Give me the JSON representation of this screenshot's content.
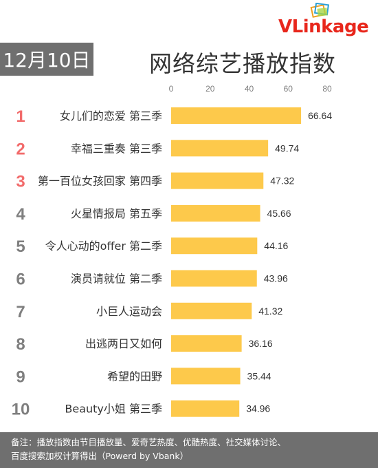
{
  "header": {
    "logo_text_v": "VLink",
    "logo_text_rest": "age",
    "date": "12月10日",
    "title": "网络综艺播放指数"
  },
  "colors": {
    "bar": "#fdc94b",
    "rank_top": "#f26b6b",
    "rank_other": "#7f7f7f",
    "badge_bg": "#6f6f6f",
    "logo_red": "#e8261b"
  },
  "chart_data": {
    "type": "bar",
    "orientation": "horizontal",
    "title": "网络综艺播放指数",
    "categories": [
      "女儿们的恋爱 第三季",
      "幸福三重奏 第三季",
      "第一百位女孩回家 第四季",
      "火星情报局 第五季",
      "令人心动的offer 第二季",
      "演员请就位 第二季",
      "小巨人运动会",
      "出逃两日又如何",
      "希望的田野",
      "Beauty小姐 第三季"
    ],
    "ranks": [
      "1",
      "2",
      "3",
      "4",
      "5",
      "6",
      "7",
      "8",
      "9",
      "10"
    ],
    "values": [
      66.64,
      49.74,
      47.32,
      45.66,
      44.16,
      43.96,
      41.32,
      36.16,
      35.44,
      34.96
    ],
    "value_labels": [
      "66.64",
      "49.74",
      "47.32",
      "45.66",
      "44.16",
      "43.96",
      "41.32",
      "36.16",
      "35.44",
      "34.96"
    ],
    "x_ticks": [
      "0",
      "20",
      "40",
      "60",
      "80"
    ],
    "xlim": [
      0,
      80
    ],
    "xlabel": "",
    "ylabel": "",
    "grid": false,
    "legend": "none"
  },
  "footer": {
    "line1": "备注：播放指数由节目播放量、爱奇艺热度、优酷热度、社交媒体讨论、",
    "line2": "百度搜索加权计算得出（Powerd by Vbank）"
  }
}
